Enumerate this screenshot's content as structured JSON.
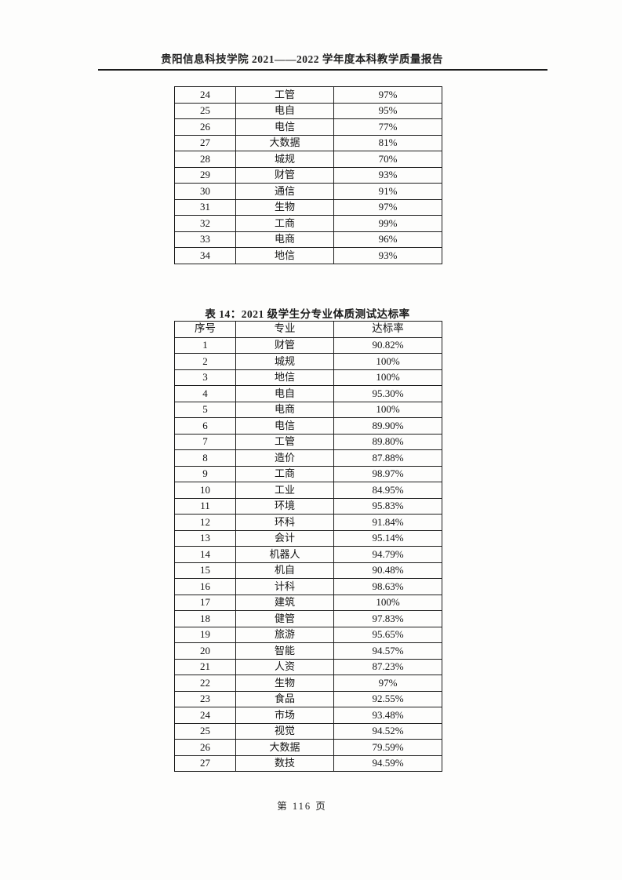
{
  "page": {
    "header_title": "贵阳信息科技学院 2021——2022 学年度本科教学质量报告",
    "footer_text": "第 116 页"
  },
  "top_table": {
    "description": "continuation of previous table: 序号 / 专业 / 达标率",
    "rows": [
      [
        "24",
        "工管",
        "97%"
      ],
      [
        "25",
        "电自",
        "95%"
      ],
      [
        "26",
        "电信",
        "77%"
      ],
      [
        "27",
        "大数据",
        "81%"
      ],
      [
        "28",
        "城规",
        "70%"
      ],
      [
        "29",
        "财管",
        "93%"
      ],
      [
        "30",
        "通信",
        "91%"
      ],
      [
        "31",
        "生物",
        "97%"
      ],
      [
        "32",
        "工商",
        "99%"
      ],
      [
        "33",
        "电商",
        "96%"
      ],
      [
        "34",
        "地信",
        "93%"
      ]
    ]
  },
  "table14": {
    "caption": "表 14：2021 级学生分专业体质测试达标率",
    "header_rows": [
      [
        "序号",
        "专业",
        "达标率"
      ]
    ],
    "rows": [
      [
        "1",
        "财管",
        "90.82%"
      ],
      [
        "2",
        "城规",
        "100%"
      ],
      [
        "3",
        "地信",
        "100%"
      ],
      [
        "4",
        "电自",
        "95.30%"
      ],
      [
        "5",
        "电商",
        "100%"
      ],
      [
        "6",
        "电信",
        "89.90%"
      ],
      [
        "7",
        "工管",
        "89.80%"
      ],
      [
        "8",
        "造价",
        "87.88%"
      ],
      [
        "9",
        "工商",
        "98.97%"
      ],
      [
        "10",
        "工业",
        "84.95%"
      ],
      [
        "11",
        "环境",
        "95.83%"
      ],
      [
        "12",
        "环科",
        "91.84%"
      ],
      [
        "13",
        "会计",
        "95.14%"
      ],
      [
        "14",
        "机器人",
        "94.79%"
      ],
      [
        "15",
        "机自",
        "90.48%"
      ],
      [
        "16",
        "计科",
        "98.63%"
      ],
      [
        "17",
        "建筑",
        "100%"
      ],
      [
        "18",
        "健管",
        "97.83%"
      ],
      [
        "19",
        "旅游",
        "95.65%"
      ],
      [
        "20",
        "智能",
        "94.57%"
      ],
      [
        "21",
        "人资",
        "87.23%"
      ],
      [
        "22",
        "生物",
        "97%"
      ],
      [
        "23",
        "食品",
        "92.55%"
      ],
      [
        "24",
        "市场",
        "93.48%"
      ],
      [
        "25",
        "视觉",
        "94.52%"
      ],
      [
        "26",
        "大数据",
        "79.59%"
      ],
      [
        "27",
        "数技",
        "94.59%"
      ]
    ]
  }
}
